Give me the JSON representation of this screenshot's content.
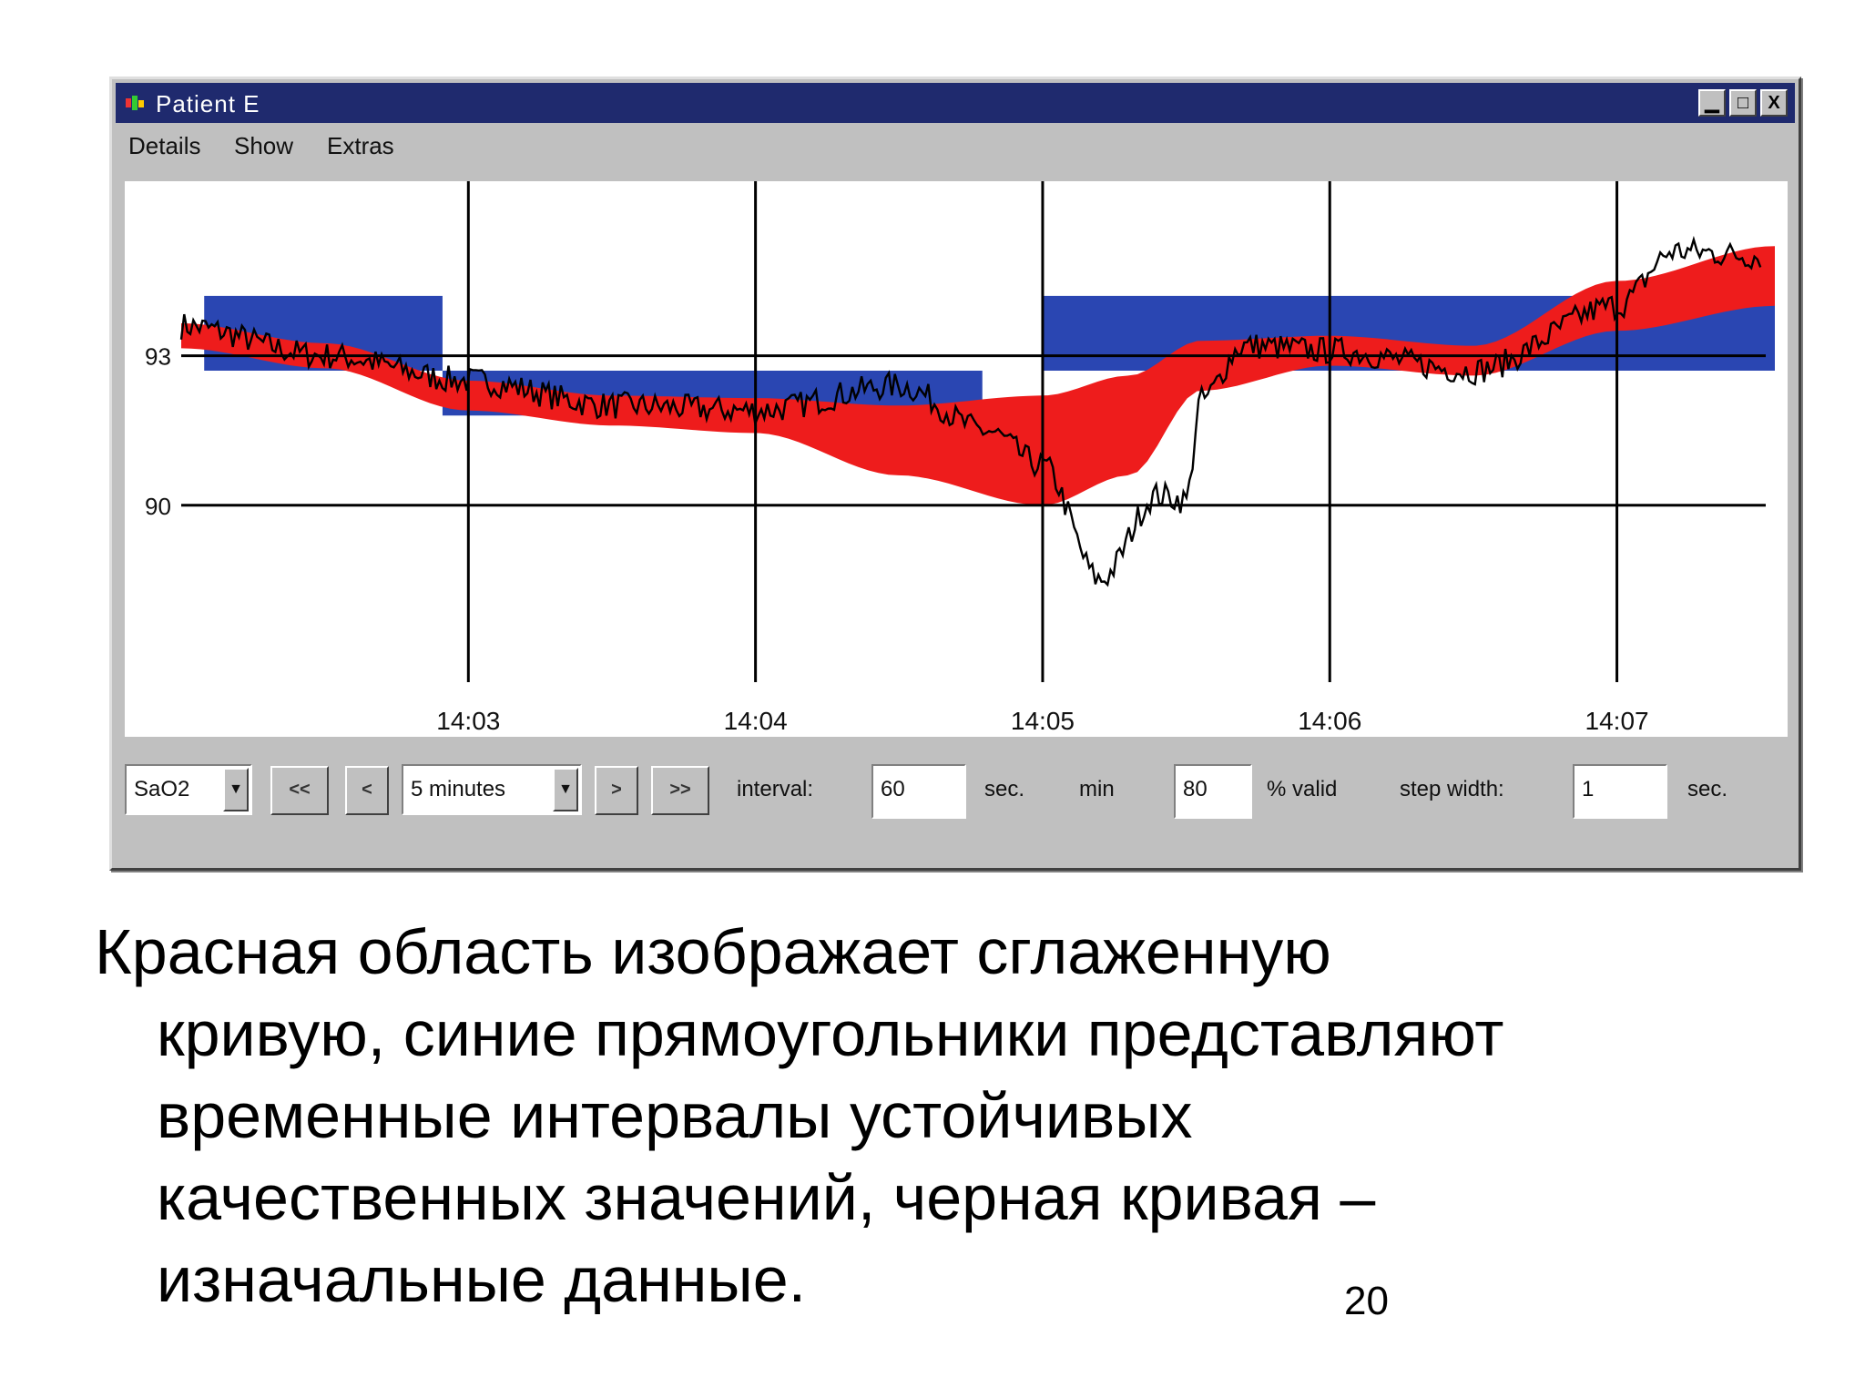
{
  "window": {
    "title": "Patient E",
    "controls": {
      "minimize": "▁",
      "maximize": "□",
      "close": "X"
    }
  },
  "menu": [
    "Details",
    "Show",
    "Extras"
  ],
  "chart_data": {
    "type": "line",
    "y_tick_labels": [
      "93",
      "90"
    ],
    "y_ticks": [
      93,
      90
    ],
    "ylim": [
      87,
      96.5
    ],
    "x_tick_labels": [
      "14:03",
      "14:04",
      "14:05",
      "14:06",
      "14:07"
    ],
    "xlim": [
      14.02,
      14.0755
    ],
    "grid": true,
    "series": [
      {
        "role": "raw data",
        "color": "#000000",
        "x": [
          14.02,
          14.025,
          14.03,
          14.035,
          14.04,
          14.045,
          14.048,
          14.05,
          14.052,
          14.054,
          14.055,
          14.0555,
          14.057,
          14.06,
          14.065,
          14.07,
          14.072,
          14.075
        ],
        "y": [
          93.6,
          93.0,
          92.5,
          92.0,
          91.9,
          92.4,
          91.5,
          90.8,
          88.5,
          90.2,
          90.1,
          92.1,
          93.2,
          93.1,
          92.7,
          94.0,
          95.1,
          95.0
        ]
      },
      {
        "role": "smoothed curve",
        "color": "#ee1c1c",
        "x": [
          14.02,
          14.025,
          14.03,
          14.035,
          14.04,
          14.045,
          14.05,
          14.053,
          14.0555,
          14.06,
          14.065,
          14.07,
          14.0755
        ],
        "y": [
          93.4,
          93.0,
          92.2,
          91.9,
          91.8,
          91.3,
          91.1,
          91.6,
          92.8,
          93.1,
          92.9,
          94.0,
          94.6
        ],
        "band_halfwidth": [
          0.25,
          0.25,
          0.3,
          0.3,
          0.35,
          0.7,
          1.1,
          1.0,
          0.5,
          0.3,
          0.3,
          0.5,
          0.6
        ]
      }
    ],
    "qualitative_intervals": {
      "color": "#2a46b2",
      "items": [
        {
          "x": [
            14.0208,
            14.0291
          ],
          "y": [
            92.7,
            94.2
          ]
        },
        {
          "x": [
            14.0291,
            14.0479
          ],
          "y": [
            91.8,
            92.7
          ]
        },
        {
          "x": [
            14.05,
            14.0755
          ],
          "y": [
            92.7,
            94.2
          ]
        }
      ]
    }
  },
  "controls": {
    "signal_select": "SaO2",
    "btn_rewind": "<<",
    "btn_back": "<",
    "range_select": "5 minutes",
    "btn_forward": ">",
    "btn_fastforward": ">>",
    "interval_label": "interval:",
    "interval_value": "60",
    "interval_unit": "sec.",
    "min_label": "min",
    "min_value": "80",
    "valid_label": "% valid",
    "step_label": "step width:",
    "step_value": "1",
    "step_unit": "sec."
  },
  "caption": {
    "line1": "Красная область изображает сглаженную",
    "line2": "кривую, синие прямоугольники представляют",
    "line3": "временные интервалы устойчивых",
    "line4": "качественных значений, черная кривая –",
    "line5": "изначальные данные."
  },
  "page_number": "20"
}
